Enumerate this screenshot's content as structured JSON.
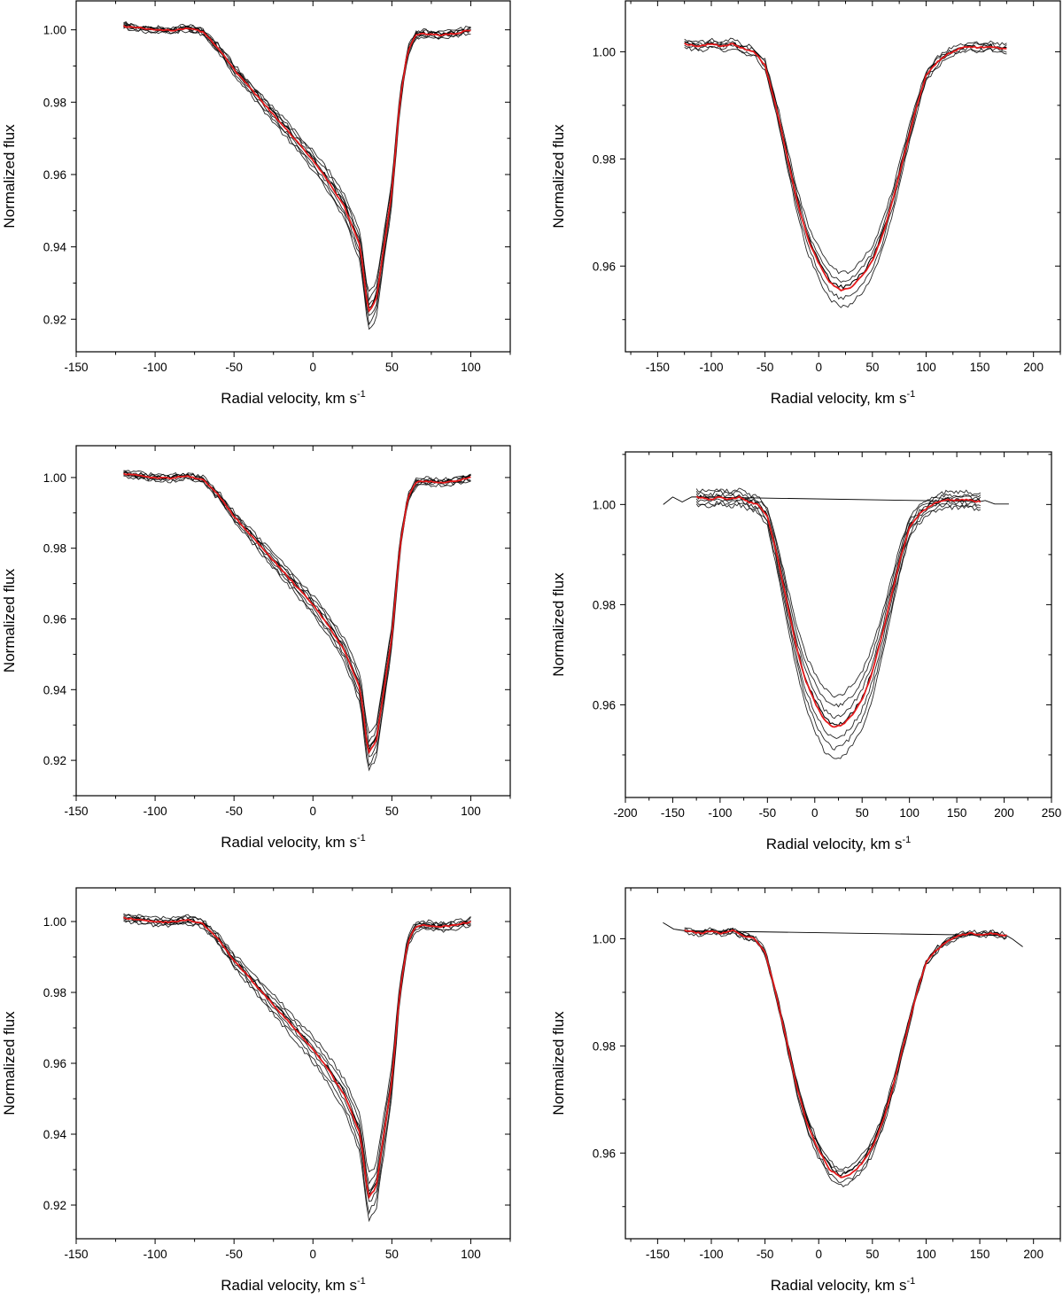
{
  "figure": {
    "panels": [
      {
        "type": "line",
        "xlabel": "Radial velocity, km s",
        "xlabel_sup": "-1",
        "ylabel": "Normalized flux",
        "xlim": [
          -150,
          125
        ],
        "ylim": [
          0.911,
          1.008
        ],
        "xticks": [
          -150,
          -100,
          -50,
          0,
          50,
          100
        ],
        "yticks": [
          0.92,
          0.94,
          0.96,
          0.98,
          1.0
        ],
        "ytick_labels": [
          "0.92",
          "0.94",
          "0.96",
          "0.98",
          "1.00"
        ],
        "grid": false,
        "line_colors": {
          "individual": "#000000",
          "mean": "#e41a1c"
        },
        "profile": "asymmetric",
        "profile_x": [
          -120,
          -110,
          -100,
          -90,
          -80,
          -70,
          -60,
          -50,
          -40,
          -30,
          -20,
          -10,
          0,
          10,
          20,
          30,
          35,
          40,
          50,
          55,
          60,
          65,
          70,
          80,
          90,
          100
        ],
        "mean_y": [
          1.001,
          1.0005,
          1.0,
          0.9998,
          1.0005,
          0.9995,
          0.995,
          0.989,
          0.984,
          0.979,
          0.974,
          0.969,
          0.964,
          0.958,
          0.951,
          0.94,
          0.922,
          0.925,
          0.955,
          0.98,
          0.994,
          0.9985,
          0.999,
          0.9985,
          0.999,
          1.0
        ],
        "individual_offsets": [
          -0.003,
          -0.002,
          -0.001,
          0.001,
          0.002,
          0.003
        ],
        "individual_count": 7
      },
      {
        "type": "line",
        "xlabel": "Radial velocity, km s",
        "xlabel_sup": "-1",
        "ylabel": "Normalized flux",
        "xlim": [
          -180,
          225
        ],
        "ylim": [
          0.944,
          1.0095
        ],
        "xticks": [
          -150,
          -100,
          -50,
          0,
          50,
          100,
          150,
          200
        ],
        "yticks": [
          0.96,
          0.98,
          1.0
        ],
        "ytick_labels": [
          "0.96",
          "0.98",
          "1.00"
        ],
        "grid": false,
        "line_colors": {
          "individual": "#000000",
          "mean": "#e41a1c"
        },
        "profile": "symmetric",
        "profile_x": [
          -125,
          -110,
          -100,
          -90,
          -80,
          -70,
          -60,
          -50,
          -40,
          -30,
          -20,
          -10,
          0,
          10,
          20,
          30,
          40,
          50,
          60,
          70,
          80,
          90,
          100,
          110,
          120,
          130,
          140,
          150,
          160,
          170,
          175
        ],
        "mean_y": [
          1.0015,
          1.001,
          1.0015,
          1.001,
          1.0015,
          1.0005,
          1.0,
          0.9975,
          0.99,
          0.981,
          0.972,
          0.965,
          0.9605,
          0.957,
          0.9555,
          0.956,
          0.958,
          0.961,
          0.966,
          0.973,
          0.981,
          0.989,
          0.9955,
          0.998,
          0.9995,
          1.0005,
          1.001,
          1.0008,
          1.001,
          1.0006,
          1.0006
        ],
        "individual_offsets": [
          -0.003,
          -0.0015,
          0.0015,
          0.003
        ],
        "individual_count": 5
      },
      {
        "type": "line",
        "xlabel": "Radial velocity, km s",
        "xlabel_sup": "-1",
        "ylabel": "Normalized flux",
        "xlim": [
          -150,
          125
        ],
        "ylim": [
          0.91,
          1.009
        ],
        "xticks": [
          -150,
          -100,
          -50,
          0,
          50,
          100
        ],
        "yticks": [
          0.92,
          0.94,
          0.96,
          0.98,
          1.0
        ],
        "ytick_labels": [
          "0.92",
          "0.94",
          "0.96",
          "0.98",
          "1.00"
        ],
        "grid": false,
        "line_colors": {
          "individual": "#000000",
          "mean": "#e41a1c"
        },
        "profile": "asymmetric",
        "profile_x": [
          -120,
          -110,
          -100,
          -90,
          -80,
          -70,
          -60,
          -50,
          -40,
          -30,
          -20,
          -10,
          0,
          10,
          20,
          30,
          35,
          40,
          50,
          55,
          60,
          65,
          70,
          80,
          90,
          100
        ],
        "mean_y": [
          1.001,
          1.0005,
          1.0,
          0.9998,
          1.0005,
          0.9995,
          0.995,
          0.989,
          0.984,
          0.979,
          0.974,
          0.969,
          0.964,
          0.958,
          0.951,
          0.94,
          0.922,
          0.925,
          0.955,
          0.98,
          0.994,
          0.9985,
          0.999,
          0.9985,
          0.999,
          1.0
        ],
        "individual_offsets": [
          -0.003,
          -0.002,
          -0.001,
          0.001,
          0.002,
          0.003
        ],
        "individual_count": 7
      },
      {
        "type": "line",
        "xlabel": "Radial velocity, km s",
        "xlabel_sup": "-1",
        "ylabel": "Normalized flux",
        "xlim": [
          -200,
          250
        ],
        "ylim": [
          0.9415,
          1.0105
        ],
        "xticks": [
          -200,
          -150,
          -100,
          -50,
          0,
          50,
          100,
          150,
          200,
          250
        ],
        "yticks": [
          0.96,
          0.98,
          1.0
        ],
        "ytick_labels": [
          "0.96",
          "0.98",
          "1.00"
        ],
        "grid": false,
        "line_colors": {
          "individual": "#000000",
          "mean": "#e41a1c"
        },
        "profile": "symmetric",
        "profile_x": [
          -125,
          -110,
          -100,
          -90,
          -80,
          -70,
          -60,
          -50,
          -40,
          -30,
          -20,
          -10,
          0,
          10,
          20,
          30,
          40,
          50,
          60,
          70,
          80,
          90,
          100,
          110,
          120,
          130,
          140,
          150,
          160,
          170,
          175
        ],
        "mean_y": [
          1.0015,
          1.001,
          1.0015,
          1.001,
          1.0015,
          1.0005,
          1.0,
          0.9975,
          0.99,
          0.981,
          0.972,
          0.965,
          0.9605,
          0.957,
          0.9555,
          0.956,
          0.958,
          0.961,
          0.966,
          0.973,
          0.981,
          0.989,
          0.9955,
          0.998,
          0.9995,
          1.0005,
          1.001,
          1.0008,
          1.001,
          1.0006,
          1.0006
        ],
        "individual_offsets": [
          -0.006,
          -0.004,
          -0.002,
          0.002,
          0.004,
          0.006
        ],
        "individual_count": 7,
        "extended_trace": {
          "x": [
            -160,
            -150,
            -140,
            -130,
            -125,
            175,
            180,
            190,
            200,
            205
          ],
          "y": [
            1.0,
            1.0015,
            1.0005,
            1.0015,
            1.0015,
            1.0006,
            1.0008,
            1.0001,
            1.0001,
            1.0001
          ]
        }
      },
      {
        "type": "line",
        "xlabel": "Radial velocity, km s",
        "xlabel_sup": "-1",
        "ylabel": "Normalized flux",
        "xlim": [
          -150,
          125
        ],
        "ylim": [
          0.9105,
          1.0095
        ],
        "xticks": [
          -150,
          -100,
          -50,
          0,
          50,
          100
        ],
        "yticks": [
          0.92,
          0.94,
          0.96,
          0.98,
          1.0
        ],
        "ytick_labels": [
          "0.92",
          "0.94",
          "0.96",
          "0.98",
          "1.00"
        ],
        "grid": false,
        "line_colors": {
          "individual": "#000000",
          "mean": "#e41a1c"
        },
        "profile": "asymmetric",
        "profile_x": [
          -120,
          -110,
          -100,
          -90,
          -80,
          -70,
          -60,
          -50,
          -40,
          -30,
          -20,
          -10,
          0,
          10,
          20,
          30,
          35,
          40,
          50,
          55,
          60,
          65,
          70,
          80,
          90,
          100
        ],
        "mean_y": [
          1.001,
          1.0005,
          1.0,
          0.9998,
          1.0005,
          0.9995,
          0.995,
          0.989,
          0.984,
          0.979,
          0.974,
          0.969,
          0.964,
          0.958,
          0.951,
          0.94,
          0.922,
          0.925,
          0.955,
          0.98,
          0.994,
          0.9985,
          0.999,
          0.9985,
          0.999,
          1.0
        ],
        "individual_offsets": [
          -0.004,
          -0.0025,
          -0.001,
          0.001,
          0.0025,
          0.004
        ],
        "individual_count": 7
      },
      {
        "type": "line",
        "xlabel": "Radial velocity, km s",
        "xlabel_sup": "-1",
        "ylabel": "Normalized flux",
        "xlim": [
          -180,
          225
        ],
        "ylim": [
          0.944,
          1.0095
        ],
        "xticks": [
          -150,
          -100,
          -50,
          0,
          50,
          100,
          150,
          200
        ],
        "yticks": [
          0.96,
          0.98,
          1.0
        ],
        "ytick_labels": [
          "0.96",
          "0.98",
          "1.00"
        ],
        "grid": false,
        "line_colors": {
          "individual": "#000000",
          "mean": "#e41a1c"
        },
        "profile": "symmetric",
        "profile_x": [
          -125,
          -110,
          -100,
          -90,
          -80,
          -70,
          -60,
          -50,
          -40,
          -30,
          -20,
          -10,
          0,
          10,
          20,
          30,
          40,
          50,
          60,
          70,
          80,
          90,
          100,
          110,
          120,
          130,
          140,
          150,
          160,
          170,
          175
        ],
        "mean_y": [
          1.0015,
          1.001,
          1.0015,
          1.001,
          1.0015,
          1.0005,
          1.0,
          0.9975,
          0.99,
          0.981,
          0.972,
          0.965,
          0.9605,
          0.957,
          0.9555,
          0.956,
          0.958,
          0.961,
          0.966,
          0.973,
          0.981,
          0.989,
          0.9955,
          0.998,
          0.9995,
          1.0005,
          1.001,
          1.0008,
          1.001,
          1.0006,
          1.0006
        ],
        "individual_offsets": [
          -0.0015,
          -0.0008,
          0.0008,
          0.0015
        ],
        "individual_count": 5,
        "extended_trace": {
          "x": [
            -145,
            -135,
            -125,
            175,
            180,
            190
          ],
          "y": [
            1.003,
            1.0018,
            1.0015,
            1.0006,
            1.0,
            0.9985
          ]
        }
      }
    ]
  }
}
